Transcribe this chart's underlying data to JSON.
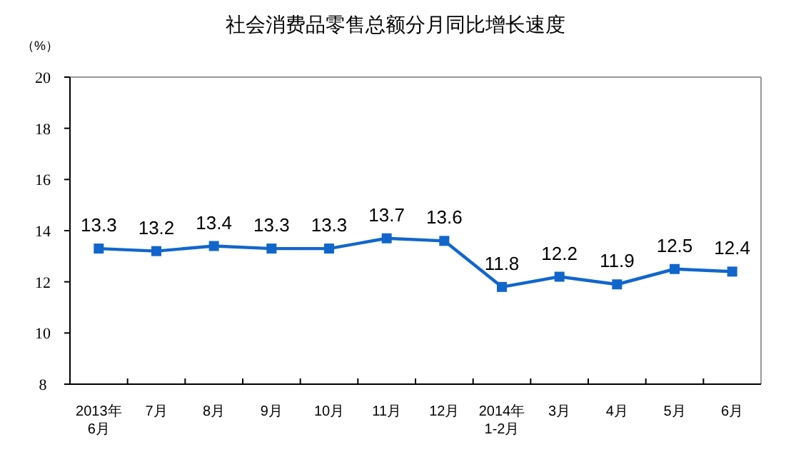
{
  "chart_data": {
    "type": "line",
    "title": "社会消费品零售总额分月同比增长速度",
    "ylabel": "（%）",
    "categories": [
      "2013年\n6月",
      "7月",
      "8月",
      "9月",
      "10月",
      "11月",
      "12月",
      "2014年\n1-2月",
      "3月",
      "4月",
      "5月",
      "6月"
    ],
    "values": [
      13.3,
      13.2,
      13.4,
      13.3,
      13.3,
      13.7,
      13.6,
      11.8,
      12.2,
      11.9,
      12.5,
      12.4
    ],
    "color": "#1166cc",
    "marker": "square",
    "data_labels": true,
    "ylim": [
      8,
      20
    ],
    "yticks": [
      8,
      10,
      12,
      14,
      16,
      18,
      20
    ]
  }
}
